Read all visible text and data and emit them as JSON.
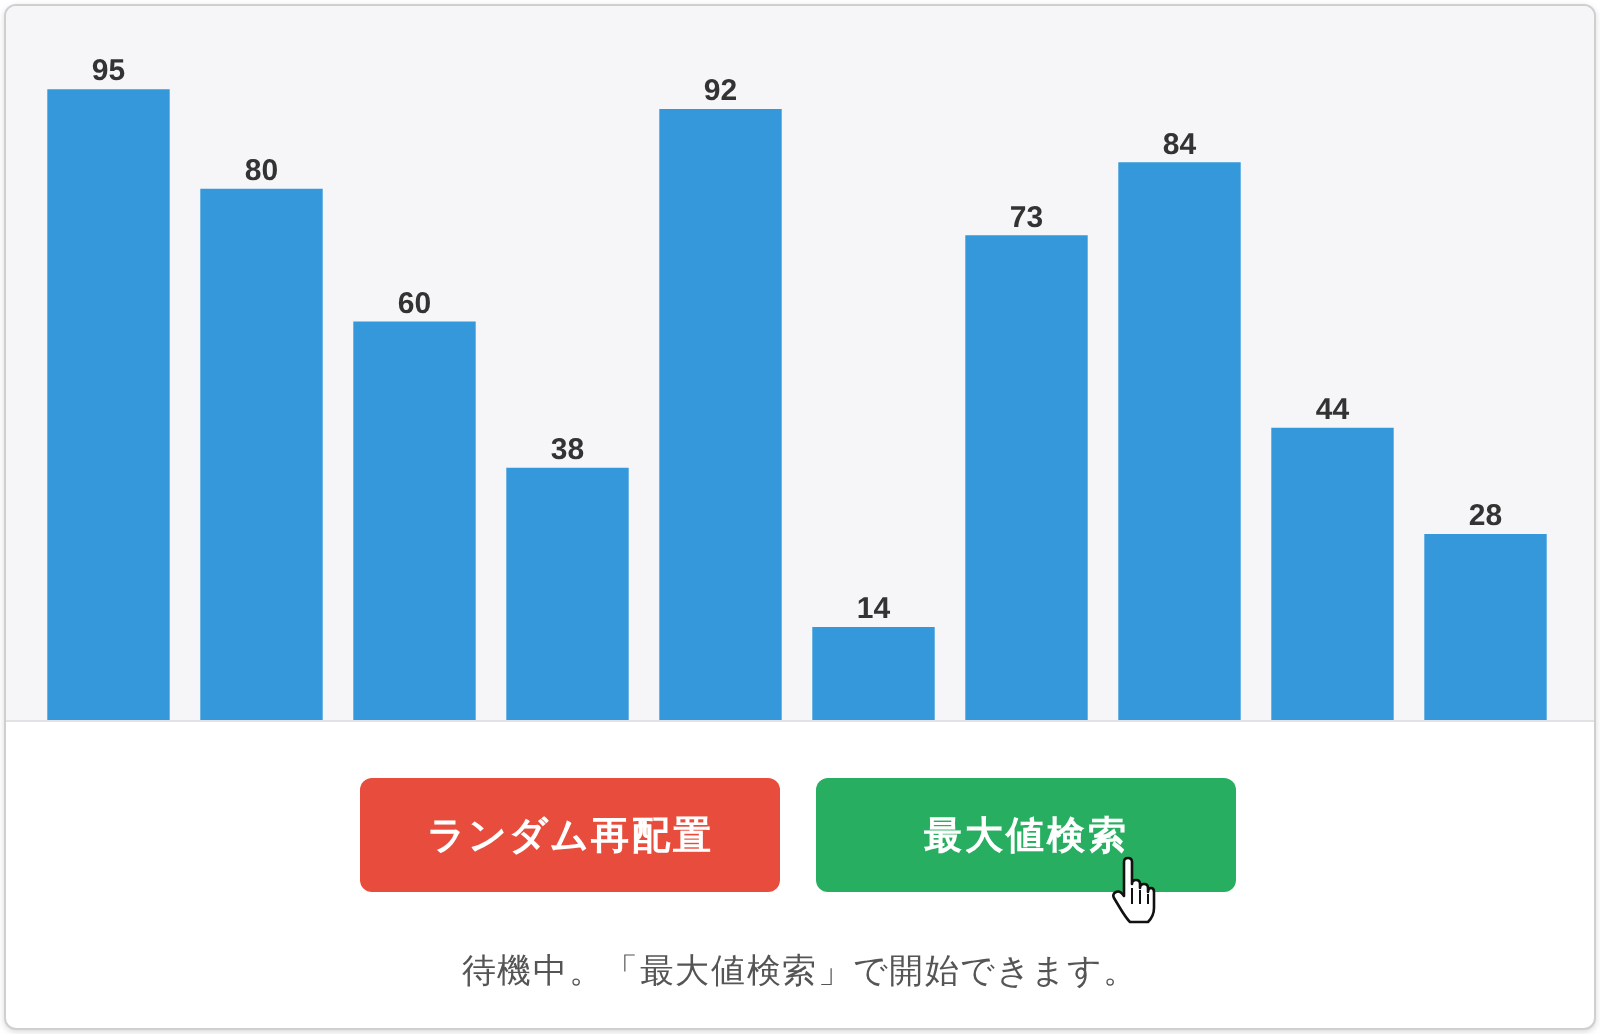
{
  "chart_data": {
    "type": "bar",
    "categories": [
      null,
      null,
      null,
      null,
      null,
      null,
      null,
      null,
      null,
      null
    ],
    "values": [
      95,
      80,
      60,
      38,
      92,
      14,
      73,
      84,
      44,
      28
    ],
    "color": "#3498db",
    "data_labels": true,
    "tick_labels": false,
    "annotations": [
      "ランダム再配置",
      "最大値検索",
      "待機中。「最大値検索」で開始できます。"
    ]
  }
}
